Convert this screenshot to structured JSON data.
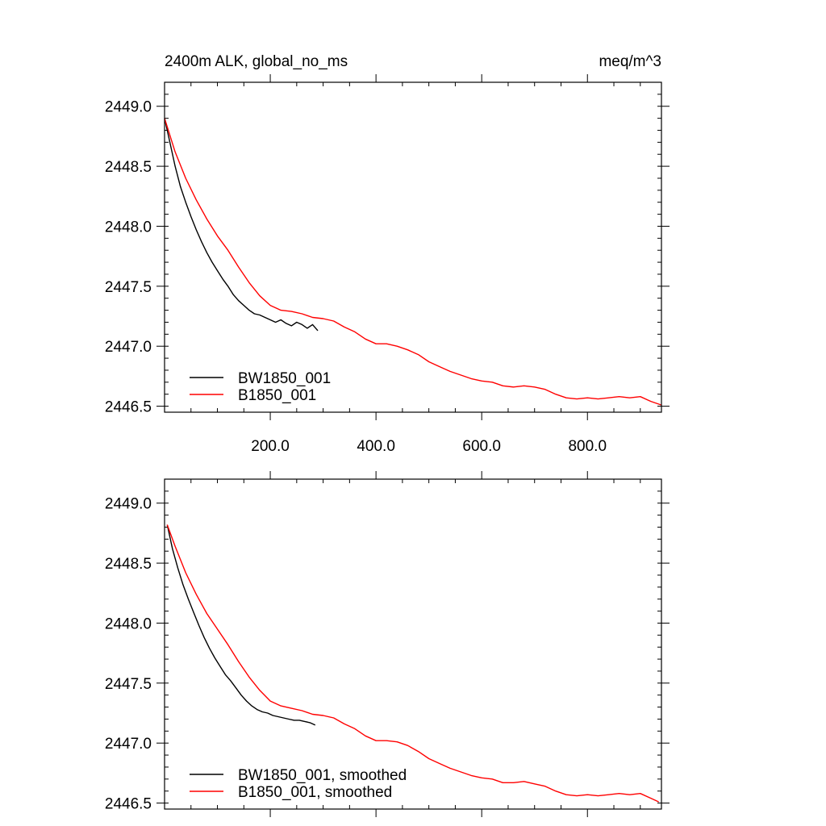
{
  "colors": {
    "BW1850_001": "#000000",
    "B1850_001": "#ff0000"
  },
  "chart_data": [
    {
      "type": "line",
      "title": "2400m ALK, global_no_ms",
      "units_label": "meq/m^3",
      "xlabel": "",
      "ylabel": "",
      "xlim": [
        0,
        940
      ],
      "ylim": [
        2446.45,
        2449.2
      ],
      "xticks": [
        200.0,
        400.0,
        600.0,
        800.0
      ],
      "xtick_labels": [
        "200.0",
        "400.0",
        "600.0",
        "800.0"
      ],
      "yticks": [
        2446.5,
        2447.0,
        2447.5,
        2448.0,
        2448.5,
        2449.0
      ],
      "ytick_labels": [
        "2446.5",
        "2447.0",
        "2447.5",
        "2448.0",
        "2448.5",
        "2449.0"
      ],
      "legend_position": "bottom-left",
      "series": [
        {
          "name": "BW1850_001",
          "color": "#000000",
          "x": [
            0,
            10,
            20,
            30,
            40,
            50,
            60,
            70,
            80,
            90,
            100,
            110,
            120,
            130,
            140,
            150,
            160,
            170,
            180,
            190,
            200,
            210,
            220,
            230,
            240,
            250,
            260,
            270,
            280,
            290
          ],
          "y": [
            2448.9,
            2448.7,
            2448.5,
            2448.33,
            2448.2,
            2448.08,
            2447.97,
            2447.87,
            2447.78,
            2447.7,
            2447.63,
            2447.56,
            2447.5,
            2447.43,
            2447.38,
            2447.34,
            2447.3,
            2447.27,
            2447.26,
            2447.24,
            2447.22,
            2447.2,
            2447.22,
            2447.19,
            2447.17,
            2447.2,
            2447.18,
            2447.15,
            2447.18,
            2447.13
          ]
        },
        {
          "name": "B1850_001",
          "color": "#ff0000",
          "x": [
            0,
            20,
            40,
            60,
            80,
            100,
            120,
            140,
            160,
            180,
            200,
            220,
            240,
            260,
            280,
            300,
            320,
            340,
            360,
            380,
            400,
            420,
            440,
            460,
            480,
            500,
            520,
            540,
            560,
            580,
            600,
            620,
            640,
            660,
            680,
            700,
            720,
            740,
            760,
            780,
            800,
            820,
            840,
            860,
            880,
            900,
            920,
            940
          ],
          "y": [
            2448.9,
            2448.62,
            2448.4,
            2448.22,
            2448.06,
            2447.92,
            2447.8,
            2447.66,
            2447.53,
            2447.42,
            2447.34,
            2447.3,
            2447.29,
            2447.27,
            2447.24,
            2447.23,
            2447.21,
            2447.16,
            2447.12,
            2447.06,
            2447.02,
            2447.02,
            2447.0,
            2446.97,
            2446.93,
            2446.87,
            2446.83,
            2446.79,
            2446.76,
            2446.73,
            2446.71,
            2446.7,
            2446.67,
            2446.66,
            2446.67,
            2446.66,
            2446.64,
            2446.6,
            2446.57,
            2446.56,
            2446.57,
            2446.56,
            2446.57,
            2446.58,
            2446.57,
            2446.58,
            2446.54,
            2446.51
          ]
        }
      ]
    },
    {
      "type": "line",
      "title": "",
      "xlabel": "",
      "ylabel": "",
      "xlim": [
        0,
        940
      ],
      "ylim": [
        2446.45,
        2449.2
      ],
      "xticks": [
        200.0,
        400.0,
        600.0,
        800.0
      ],
      "yticks": [
        2446.5,
        2447.0,
        2447.5,
        2448.0,
        2448.5,
        2449.0
      ],
      "ytick_labels": [
        "2446.5",
        "2447.0",
        "2447.5",
        "2448.0",
        "2448.5",
        "2449.0"
      ],
      "legend_position": "bottom-left",
      "series": [
        {
          "name": "BW1850_001, smoothed",
          "color": "#000000",
          "x": [
            5,
            15,
            25,
            35,
            45,
            55,
            65,
            75,
            85,
            95,
            105,
            115,
            125,
            135,
            145,
            155,
            165,
            175,
            185,
            195,
            205,
            215,
            225,
            235,
            245,
            255,
            265,
            275,
            285
          ],
          "y": [
            2448.82,
            2448.62,
            2448.46,
            2448.32,
            2448.2,
            2448.09,
            2447.98,
            2447.88,
            2447.79,
            2447.71,
            2447.64,
            2447.57,
            2447.52,
            2447.46,
            2447.4,
            2447.35,
            2447.31,
            2447.28,
            2447.26,
            2447.25,
            2447.23,
            2447.22,
            2447.21,
            2447.2,
            2447.19,
            2447.19,
            2447.18,
            2447.17,
            2447.15
          ]
        },
        {
          "name": "B1850_001, smoothed",
          "color": "#ff0000",
          "x": [
            5,
            20,
            40,
            60,
            80,
            100,
            120,
            140,
            160,
            180,
            200,
            220,
            240,
            260,
            280,
            300,
            320,
            340,
            360,
            380,
            400,
            420,
            440,
            460,
            480,
            500,
            520,
            540,
            560,
            580,
            600,
            620,
            640,
            660,
            680,
            700,
            720,
            740,
            760,
            780,
            800,
            820,
            840,
            860,
            880,
            900,
            920,
            935
          ],
          "y": [
            2448.82,
            2448.64,
            2448.42,
            2448.24,
            2448.08,
            2447.95,
            2447.82,
            2447.68,
            2447.55,
            2447.44,
            2447.35,
            2447.31,
            2447.29,
            2447.27,
            2447.24,
            2447.23,
            2447.21,
            2447.16,
            2447.12,
            2447.06,
            2447.02,
            2447.02,
            2447.01,
            2446.98,
            2446.93,
            2446.87,
            2446.83,
            2446.79,
            2446.76,
            2446.73,
            2446.71,
            2446.7,
            2446.67,
            2446.67,
            2446.68,
            2446.66,
            2446.64,
            2446.6,
            2446.57,
            2446.56,
            2446.57,
            2446.56,
            2446.57,
            2446.58,
            2446.57,
            2446.58,
            2446.54,
            2446.51
          ]
        }
      ]
    }
  ]
}
